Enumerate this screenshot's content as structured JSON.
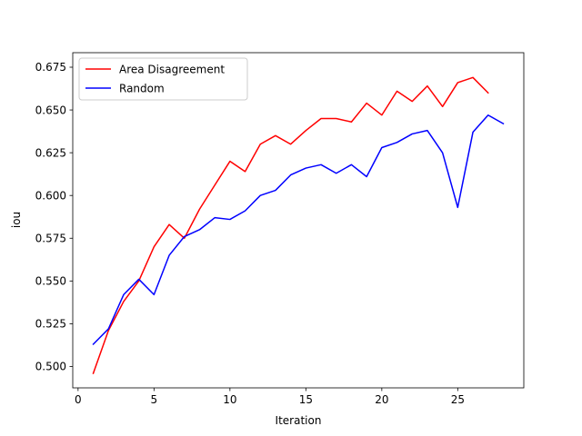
{
  "chart_data": {
    "type": "line",
    "title": "",
    "xlabel": "Iteration",
    "ylabel": "iou",
    "xlim": [
      -0.35,
      29.35
    ],
    "ylim": [
      0.4875,
      0.6835
    ],
    "xticks": [
      0,
      5,
      10,
      15,
      20,
      25
    ],
    "xtick_labels": [
      "0",
      "5",
      "10",
      "15",
      "20",
      "25"
    ],
    "yticks": [
      0.5,
      0.525,
      0.55,
      0.575,
      0.6,
      0.625,
      0.65,
      0.675
    ],
    "ytick_labels": [
      "0.500",
      "0.525",
      "0.550",
      "0.575",
      "0.600",
      "0.625",
      "0.650",
      "0.675"
    ],
    "grid": false,
    "legend_position": "upper-left",
    "series": [
      {
        "name": "Area Disagreement",
        "color": "#ff0000",
        "x": [
          1,
          2,
          3,
          4,
          5,
          6,
          7,
          8,
          9,
          10,
          11,
          12,
          13,
          14,
          15,
          16,
          17,
          18,
          19,
          20,
          21,
          22,
          23,
          24,
          25,
          26,
          27
        ],
        "values": [
          0.496,
          0.521,
          0.538,
          0.55,
          0.57,
          0.583,
          0.575,
          0.592,
          0.606,
          0.62,
          0.614,
          0.63,
          0.635,
          0.63,
          0.638,
          0.645,
          0.645,
          0.643,
          0.654,
          0.647,
          0.661,
          0.655,
          0.664,
          0.652,
          0.666,
          0.669,
          0.66
        ]
      },
      {
        "name": "Random",
        "color": "#0000ff",
        "x": [
          1,
          2,
          3,
          4,
          5,
          6,
          7,
          8,
          9,
          10,
          11,
          12,
          13,
          14,
          15,
          16,
          17,
          18,
          19,
          20,
          21,
          22,
          23,
          24,
          25,
          26,
          27,
          28
        ],
        "values": [
          0.513,
          0.522,
          0.542,
          0.551,
          0.542,
          0.565,
          0.576,
          0.58,
          0.587,
          0.586,
          0.591,
          0.6,
          0.603,
          0.612,
          0.616,
          0.618,
          0.613,
          0.618,
          0.611,
          0.628,
          0.631,
          0.636,
          0.638,
          0.625,
          0.593,
          0.637,
          0.647,
          0.642
        ]
      }
    ]
  }
}
